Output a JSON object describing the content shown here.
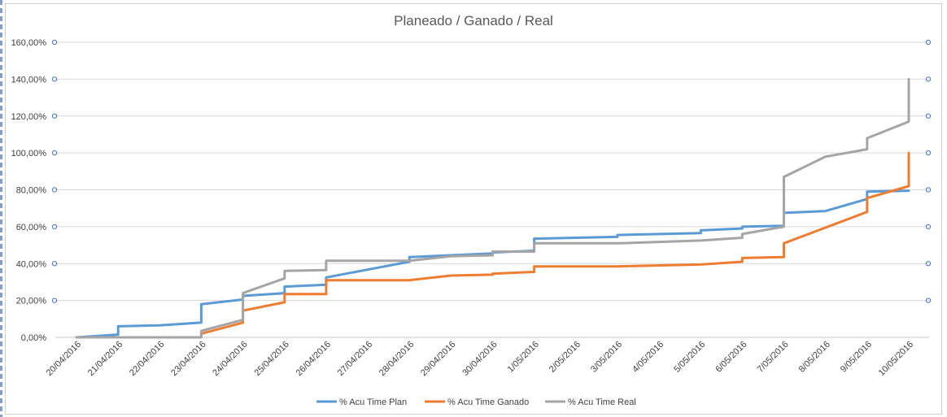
{
  "chart_data": {
    "type": "line",
    "title": "Planeado / Ganado / Real",
    "xlabel": "",
    "ylabel": "",
    "ylim": [
      0,
      1.6
    ],
    "y_ticks": [
      "0,00%",
      "20,00%",
      "40,00%",
      "60,00%",
      "80,00%",
      "100,00%",
      "120,00%",
      "140,00%",
      "160,00%"
    ],
    "categories": [
      "20/04/2016",
      "21/04/2016",
      "22/04/2016",
      "23/04/2016",
      "24/04/2016",
      "25/04/2016",
      "26/04/2016",
      "27/04/2016",
      "28/04/2016",
      "29/04/2016",
      "30/04/2016",
      "1/05/2016",
      "2/05/2016",
      "3/05/2016",
      "4/05/2016",
      "5/05/2016",
      "6/05/2016",
      "7/05/2016",
      "8/05/2016",
      "9/05/2016",
      "10/05/2016"
    ],
    "grid": true,
    "legend_position": "bottom",
    "secondary_axis_ticks_visible": true,
    "series": [
      {
        "name": "%  Acu Time Plan",
        "color": "#5b9bd5",
        "points": [
          [
            0,
            0.0
          ],
          [
            1,
            0.015
          ],
          [
            1,
            0.06
          ],
          [
            2,
            0.065
          ],
          [
            3,
            0.08
          ],
          [
            3,
            0.18
          ],
          [
            4,
            0.205
          ],
          [
            4,
            0.225
          ],
          [
            5,
            0.24
          ],
          [
            5,
            0.275
          ],
          [
            6,
            0.285
          ],
          [
            6,
            0.325
          ],
          [
            8,
            0.41
          ],
          [
            8,
            0.435
          ],
          [
            9,
            0.445
          ],
          [
            10,
            0.455
          ],
          [
            10,
            0.46
          ],
          [
            11,
            0.47
          ],
          [
            11,
            0.535
          ],
          [
            12,
            0.54
          ],
          [
            13,
            0.545
          ],
          [
            13,
            0.555
          ],
          [
            15,
            0.565
          ],
          [
            15,
            0.58
          ],
          [
            16,
            0.59
          ],
          [
            16,
            0.6
          ],
          [
            17,
            0.605
          ],
          [
            17,
            0.675
          ],
          [
            18,
            0.685
          ],
          [
            19,
            0.75
          ],
          [
            19,
            0.79
          ],
          [
            20,
            0.795
          ]
        ]
      },
      {
        "name": "% Acu Time Ganado",
        "color": "#ed7d31",
        "points": [
          [
            0,
            0.0
          ],
          [
            3,
            0.0
          ],
          [
            3,
            0.02
          ],
          [
            4,
            0.08
          ],
          [
            4,
            0.145
          ],
          [
            5,
            0.19
          ],
          [
            5,
            0.235
          ],
          [
            6,
            0.235
          ],
          [
            6,
            0.31
          ],
          [
            8,
            0.31
          ],
          [
            9,
            0.335
          ],
          [
            10,
            0.34
          ],
          [
            10,
            0.345
          ],
          [
            11,
            0.355
          ],
          [
            11,
            0.385
          ],
          [
            13,
            0.385
          ],
          [
            15,
            0.395
          ],
          [
            16,
            0.41
          ],
          [
            16,
            0.43
          ],
          [
            17,
            0.435
          ],
          [
            17,
            0.51
          ],
          [
            18,
            0.595
          ],
          [
            19,
            0.68
          ],
          [
            19,
            0.755
          ],
          [
            20,
            0.82
          ],
          [
            20,
            1.0
          ]
        ]
      },
      {
        "name": "%  Acu Time Real",
        "color": "#a5a5a5",
        "points": [
          [
            0,
            0.0
          ],
          [
            3,
            0.0
          ],
          [
            3,
            0.035
          ],
          [
            4,
            0.095
          ],
          [
            4,
            0.24
          ],
          [
            5,
            0.32
          ],
          [
            5,
            0.36
          ],
          [
            6,
            0.365
          ],
          [
            6,
            0.415
          ],
          [
            8,
            0.415
          ],
          [
            9,
            0.44
          ],
          [
            10,
            0.445
          ],
          [
            10,
            0.465
          ],
          [
            11,
            0.465
          ],
          [
            11,
            0.51
          ],
          [
            13,
            0.51
          ],
          [
            15,
            0.525
          ],
          [
            16,
            0.54
          ],
          [
            16,
            0.56
          ],
          [
            17,
            0.6
          ],
          [
            17,
            0.87
          ],
          [
            18,
            0.98
          ],
          [
            19,
            1.02
          ],
          [
            19,
            1.08
          ],
          [
            20,
            1.17
          ],
          [
            20,
            1.4
          ]
        ]
      }
    ]
  }
}
